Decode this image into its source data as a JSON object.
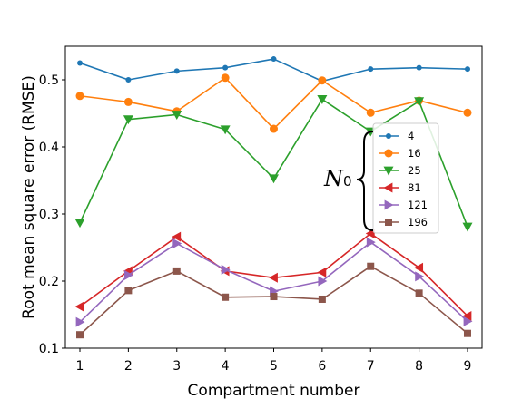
{
  "chart_data": {
    "type": "line",
    "title": "",
    "xlabel": "Compartment number",
    "ylabel": "Root mean  square error (RMSE)",
    "x": [
      1,
      2,
      3,
      4,
      5,
      6,
      7,
      8,
      9
    ],
    "xlim": [
      0.7,
      9.3
    ],
    "ylim": [
      0.1,
      0.55
    ],
    "xticks": [
      "1",
      "2",
      "3",
      "4",
      "5",
      "6",
      "7",
      "8",
      "9"
    ],
    "yticks": [
      "0.1",
      "0.2",
      "0.3",
      "0.4",
      "0.5"
    ],
    "grid": false,
    "legend_position": "center-right",
    "legend_annotation": {
      "main": "N",
      "sub": "0"
    },
    "series": [
      {
        "name": "4",
        "color": "#1f77b4",
        "marker": "circle-small",
        "values": [
          0.525,
          0.5,
          0.513,
          0.518,
          0.531,
          0.498,
          0.516,
          0.518,
          0.516
        ]
      },
      {
        "name": "16",
        "color": "#ff7f0e",
        "marker": "circle",
        "values": [
          0.476,
          0.467,
          0.453,
          0.503,
          0.427,
          0.499,
          0.451,
          0.469,
          0.451
        ]
      },
      {
        "name": "25",
        "color": "#2ca02c",
        "marker": "triangle-down",
        "values": [
          0.287,
          0.441,
          0.448,
          0.426,
          0.353,
          0.471,
          0.423,
          0.468,
          0.281
        ]
      },
      {
        "name": "81",
        "color": "#d62728",
        "marker": "triangle-left",
        "values": [
          0.162,
          0.215,
          0.266,
          0.215,
          0.205,
          0.213,
          0.271,
          0.22,
          0.148
        ]
      },
      {
        "name": "121",
        "color": "#9467bd",
        "marker": "triangle-right",
        "values": [
          0.139,
          0.209,
          0.256,
          0.217,
          0.185,
          0.2,
          0.258,
          0.207,
          0.14
        ]
      },
      {
        "name": "196",
        "color": "#8c564b",
        "marker": "square",
        "values": [
          0.12,
          0.186,
          0.215,
          0.176,
          0.177,
          0.173,
          0.222,
          0.182,
          0.122
        ]
      }
    ]
  }
}
